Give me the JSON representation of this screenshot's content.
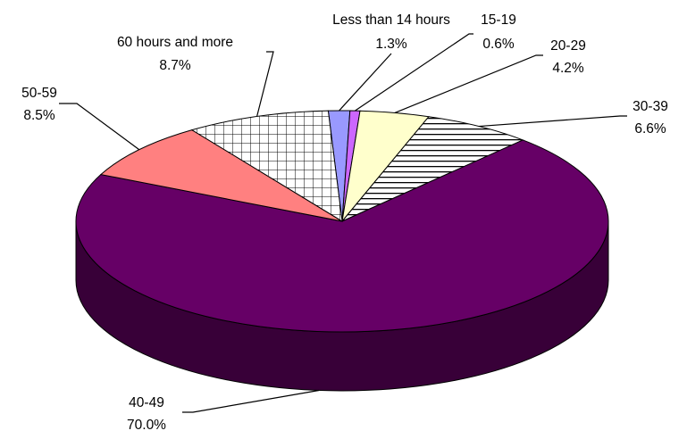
{
  "chart_data": {
    "type": "pie",
    "style": "3d-exploded-perspective",
    "title": "",
    "slices": [
      {
        "label": "Less than 14 hours",
        "value": 1.3,
        "value_label": "1.3%",
        "color": "#9999ff",
        "pattern": "none"
      },
      {
        "label": "15-19",
        "value": 0.6,
        "value_label": "0.6%",
        "color": "#cc66ff",
        "pattern": "none"
      },
      {
        "label": "20-29",
        "value": 4.2,
        "value_label": "4.2%",
        "color": "#ffffcc",
        "pattern": "none"
      },
      {
        "label": "30-39",
        "value": 6.6,
        "value_label": "6.6%",
        "color": "#ffffff",
        "pattern": "horizontal-stripes"
      },
      {
        "label": "40-49",
        "value": 70.0,
        "value_label": "70.0%",
        "color": "#660066",
        "pattern": "none"
      },
      {
        "label": "50-59",
        "value": 8.5,
        "value_label": "8.5%",
        "color": "#ff8080",
        "pattern": "none"
      },
      {
        "label": "60 hours and more",
        "value": 8.7,
        "value_label": "8.7%",
        "color": "#ffffff",
        "pattern": "grid"
      }
    ]
  }
}
